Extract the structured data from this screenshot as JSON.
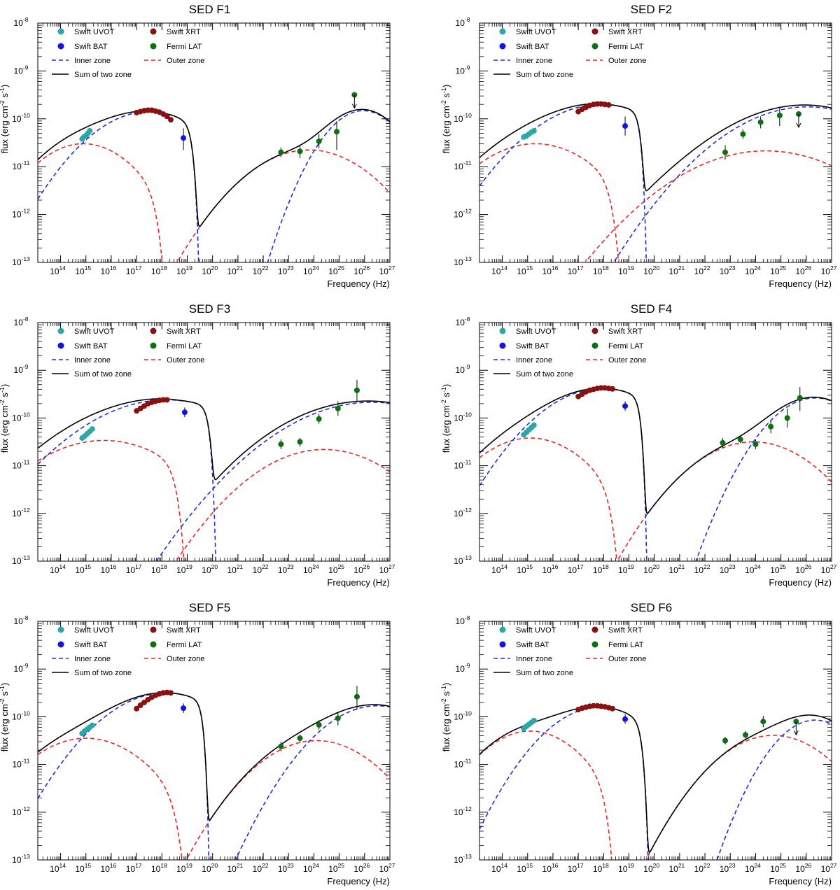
{
  "figure": {
    "background": "#ffffff"
  },
  "common": {
    "xlabel": "Frequency (Hz)",
    "ylabel_prefix": "flux (erg cm",
    "ylabel_exp1": "-2",
    "ylabel_mid": " s",
    "ylabel_exp2": "-1",
    "ylabel_suffix": ")",
    "x_tick_exponents": [
      14,
      15,
      16,
      17,
      18,
      19,
      20,
      21,
      22,
      23,
      24,
      25,
      26,
      27
    ],
    "y_tick_exponents": [
      -13,
      -12,
      -11,
      -10,
      -9,
      -8
    ],
    "xlim_log10": [
      13.1,
      27
    ],
    "ylim_log10": [
      -13,
      -8
    ],
    "tick_base": "10",
    "legend": [
      {
        "label": "Swift UVOT",
        "kind": "marker",
        "color": "#2ca7a7"
      },
      {
        "label": "Swift XRT",
        "kind": "marker",
        "color": "#8b1010"
      },
      {
        "label": "Swift BAT",
        "kind": "marker",
        "color": "#1414e0"
      },
      {
        "label": "Fermi LAT",
        "kind": "marker",
        "color": "#0f6e12"
      },
      {
        "label": "Inner zone",
        "kind": "dash",
        "color": "#1a2ee0"
      },
      {
        "label": "Outer zone",
        "kind": "dash",
        "color": "#ee2222"
      },
      {
        "label": "Sum of two zone",
        "kind": "line",
        "color": "#000000"
      }
    ],
    "colors": {
      "inner": "#1a2ee0",
      "outer": "#ee2222",
      "sum": "#000000",
      "uvot": "#2ca7a7",
      "xrt": "#8b1010",
      "bat": "#1414e0",
      "lat": "#0f6e12"
    }
  },
  "chart_data": [
    {
      "type": "scatter",
      "title": "SED F1",
      "xlabel": "Frequency (Hz)",
      "ylabel": "flux (erg cm-2 s-1)",
      "x_log10": true,
      "y_log10": true,
      "uvot": [
        [
          14.85,
          -10.42
        ],
        [
          14.92,
          -10.38
        ],
        [
          15.0,
          -10.35
        ],
        [
          15.08,
          -10.3
        ],
        [
          15.15,
          -10.25
        ]
      ],
      "xrt": [
        [
          17.0,
          -9.87
        ],
        [
          17.15,
          -9.85
        ],
        [
          17.3,
          -9.83
        ],
        [
          17.45,
          -9.82
        ],
        [
          17.6,
          -9.82
        ],
        [
          17.75,
          -9.84
        ],
        [
          17.9,
          -9.86
        ],
        [
          18.05,
          -9.9
        ],
        [
          18.2,
          -9.95
        ],
        [
          18.35,
          -10.02
        ]
      ],
      "bat": [
        [
          18.85,
          -10.4,
          -10.2,
          -10.65
        ]
      ],
      "lat": [
        [
          22.7,
          -10.7,
          -10.6,
          -10.8
        ],
        [
          23.45,
          -10.68,
          -10.55,
          -10.82
        ],
        [
          24.2,
          -10.47,
          -10.32,
          -10.62
        ],
        [
          24.9,
          -10.27,
          -10.05,
          -10.65
        ]
      ],
      "upper_limits": [
        [
          25.6,
          -9.5
        ]
      ],
      "inner": {
        "sync": {
          "peak": [
            17.5,
            -9.85
          ],
          "w": 2.3,
          "cut": 19.7
        },
        "ic": {
          "peak": [
            25.95,
            -9.83
          ],
          "w": 1.5,
          "cut": 29.5
        }
      },
      "outer": {
        "sync": {
          "peak": [
            14.9,
            -10.52
          ],
          "w": 2.0,
          "cut": 18.65
        },
        "ic": {
          "peak": [
            23.8,
            -10.65
          ],
          "w": 2.4,
          "cut": 29.5
        }
      }
    },
    {
      "type": "scatter",
      "title": "SED F2",
      "xlabel": "Frequency (Hz)",
      "ylabel": "flux (erg cm-2 s-1)",
      "x_log10": true,
      "y_log10": true,
      "uvot": [
        [
          14.85,
          -10.38
        ],
        [
          14.95,
          -10.36
        ],
        [
          15.05,
          -10.32
        ],
        [
          15.15,
          -10.28
        ],
        [
          15.25,
          -10.25
        ]
      ],
      "xrt": [
        [
          17.0,
          -9.85
        ],
        [
          17.15,
          -9.8
        ],
        [
          17.3,
          -9.76
        ],
        [
          17.45,
          -9.72
        ],
        [
          17.6,
          -9.7
        ],
        [
          17.75,
          -9.69
        ],
        [
          17.9,
          -9.69
        ],
        [
          18.05,
          -9.7
        ],
        [
          18.2,
          -9.71
        ]
      ],
      "bat": [
        [
          18.85,
          -10.15,
          -9.95,
          -10.35
        ]
      ],
      "lat": [
        [
          22.8,
          -10.7,
          -10.55,
          -10.85
        ],
        [
          23.5,
          -10.32,
          -10.22,
          -10.42
        ],
        [
          24.2,
          -10.07,
          -9.95,
          -10.2
        ],
        [
          24.95,
          -9.93,
          -9.75,
          -10.15
        ]
      ],
      "upper_limits": [
        [
          25.7,
          -9.9
        ]
      ],
      "inner": {
        "sync": {
          "peak": [
            17.9,
            -9.7
          ],
          "w": 2.6,
          "cut": 19.9
        },
        "ic": {
          "peak": [
            26.05,
            -9.75
          ],
          "w": 3.0,
          "cut": 29.5
        }
      },
      "outer": {
        "sync": {
          "peak": [
            15.3,
            -10.52
          ],
          "w": 2.4,
          "cut": 19.2
        },
        "ic": {
          "peak": [
            24.4,
            -10.67
          ],
          "w": 3.3,
          "cut": 29.5
        }
      }
    },
    {
      "type": "scatter",
      "title": "SED F3",
      "xlabel": "Frequency (Hz)",
      "ylabel": "flux (erg cm-2 s-1)",
      "x_log10": true,
      "y_log10": true,
      "uvot": [
        [
          14.85,
          -10.42
        ],
        [
          14.95,
          -10.38
        ],
        [
          15.05,
          -10.33
        ],
        [
          15.15,
          -10.28
        ],
        [
          15.25,
          -10.23
        ]
      ],
      "xrt": [
        [
          17.0,
          -9.85
        ],
        [
          17.15,
          -9.8
        ],
        [
          17.3,
          -9.75
        ],
        [
          17.45,
          -9.7
        ],
        [
          17.6,
          -9.67
        ],
        [
          17.75,
          -9.65
        ],
        [
          17.9,
          -9.63
        ],
        [
          18.05,
          -9.62
        ],
        [
          18.2,
          -9.62
        ]
      ],
      "bat": [
        [
          18.9,
          -9.88,
          -9.78,
          -9.98
        ]
      ],
      "lat": [
        [
          22.7,
          -10.55,
          -10.45,
          -10.65
        ],
        [
          23.45,
          -10.5,
          -10.42,
          -10.6
        ],
        [
          24.2,
          -10.02,
          -9.92,
          -10.12
        ],
        [
          24.95,
          -9.8,
          -9.65,
          -9.95
        ],
        [
          25.7,
          -9.42,
          -9.2,
          -9.65
        ]
      ],
      "upper_limits": [],
      "inner": {
        "sync": {
          "peak": [
            18.2,
            -9.62
          ],
          "w": 3.1,
          "cut": 20.35
        },
        "ic": {
          "peak": [
            26.3,
            -9.67
          ],
          "w": 3.3,
          "cut": 29.5
        }
      },
      "outer": {
        "sync": {
          "peak": [
            15.7,
            -10.47
          ],
          "w": 2.8,
          "cut": 19.4
        },
        "ic": {
          "peak": [
            24.4,
            -10.66
          ],
          "w": 2.7,
          "cut": 29.5
        }
      }
    },
    {
      "type": "scatter",
      "title": "SED F4",
      "xlabel": "Frequency (Hz)",
      "ylabel": "flux (erg cm-2 s-1)",
      "x_log10": true,
      "y_log10": true,
      "uvot": [
        [
          14.85,
          -10.35
        ],
        [
          14.95,
          -10.3
        ],
        [
          15.05,
          -10.25
        ],
        [
          15.15,
          -10.2
        ],
        [
          15.25,
          -10.15
        ]
      ],
      "xrt": [
        [
          17.0,
          -9.55
        ],
        [
          17.15,
          -9.5
        ],
        [
          17.3,
          -9.45
        ],
        [
          17.45,
          -9.42
        ],
        [
          17.6,
          -9.4
        ],
        [
          17.75,
          -9.38
        ],
        [
          17.9,
          -9.37
        ],
        [
          18.05,
          -9.37
        ],
        [
          18.2,
          -9.38
        ],
        [
          18.35,
          -9.39
        ]
      ],
      "bat": [
        [
          18.85,
          -9.75,
          -9.65,
          -9.85
        ]
      ],
      "lat": [
        [
          22.7,
          -10.52,
          -10.42,
          -10.62
        ],
        [
          23.4,
          -10.45,
          -10.37,
          -10.53
        ],
        [
          24.0,
          -10.55,
          -10.45,
          -10.65
        ],
        [
          24.6,
          -10.18,
          -10.05,
          -10.32
        ],
        [
          25.25,
          -10.0,
          -9.8,
          -10.2
        ],
        [
          25.75,
          -9.58,
          -9.35,
          -9.85
        ]
      ],
      "upper_limits": [],
      "inner": {
        "sync": {
          "peak": [
            17.95,
            -9.38
          ],
          "w": 2.4,
          "cut": 19.9
        },
        "ic": {
          "peak": [
            26.35,
            -9.58
          ],
          "w": 1.8,
          "cut": 29.5
        }
      },
      "outer": {
        "sync": {
          "peak": [
            15.1,
            -10.42
          ],
          "w": 2.2,
          "cut": 19.2
        },
        "ic": {
          "peak": [
            23.9,
            -10.5
          ],
          "w": 2.4,
          "cut": 29.5
        }
      }
    },
    {
      "type": "scatter",
      "title": "SED F5",
      "xlabel": "Frequency (Hz)",
      "ylabel": "flux (erg cm-2 s-1)",
      "x_log10": true,
      "y_log10": true,
      "uvot": [
        [
          14.85,
          -10.35
        ],
        [
          14.95,
          -10.3
        ],
        [
          15.05,
          -10.26
        ],
        [
          15.15,
          -10.22
        ],
        [
          15.25,
          -10.18
        ]
      ],
      "xrt": [
        [
          17.0,
          -9.83
        ],
        [
          17.15,
          -9.76
        ],
        [
          17.3,
          -9.7
        ],
        [
          17.45,
          -9.64
        ],
        [
          17.6,
          -9.59
        ],
        [
          17.75,
          -9.55
        ],
        [
          17.9,
          -9.52
        ],
        [
          18.05,
          -9.5
        ],
        [
          18.2,
          -9.49
        ],
        [
          18.35,
          -9.5
        ]
      ],
      "bat": [
        [
          18.85,
          -9.82,
          -9.72,
          -9.92
        ]
      ],
      "lat": [
        [
          22.7,
          -10.62,
          -10.52,
          -10.72
        ],
        [
          23.45,
          -10.45,
          -10.37,
          -10.53
        ],
        [
          24.2,
          -10.17,
          -10.07,
          -10.27
        ],
        [
          24.95,
          -10.03,
          -9.9,
          -10.18
        ],
        [
          25.7,
          -9.58,
          -9.35,
          -9.85
        ]
      ],
      "upper_limits": [],
      "inner": {
        "sync": {
          "peak": [
            18.15,
            -9.5
          ],
          "w": 2.4,
          "cut": 20.05
        },
        "ic": {
          "peak": [
            26.5,
            -9.77
          ],
          "w": 2.2,
          "cut": 29.5
        }
      },
      "outer": {
        "sync": {
          "peak": [
            15.0,
            -10.45
          ],
          "w": 2.3,
          "cut": 19.6
        },
        "ic": {
          "peak": [
            24.1,
            -10.5
          ],
          "w": 2.3,
          "cut": 29.5
        }
      }
    },
    {
      "type": "scatter",
      "title": "SED F6",
      "xlabel": "Frequency (Hz)",
      "ylabel": "flux (erg cm-2 s-1)",
      "x_log10": true,
      "y_log10": true,
      "uvot": [
        [
          14.85,
          -10.25
        ],
        [
          14.95,
          -10.2
        ],
        [
          15.05,
          -10.16
        ],
        [
          15.15,
          -10.12
        ],
        [
          15.25,
          -10.08
        ]
      ],
      "xrt": [
        [
          17.0,
          -9.85
        ],
        [
          17.15,
          -9.82
        ],
        [
          17.3,
          -9.8
        ],
        [
          17.45,
          -9.78
        ],
        [
          17.6,
          -9.77
        ],
        [
          17.75,
          -9.77
        ],
        [
          17.9,
          -9.78
        ],
        [
          18.05,
          -9.79
        ],
        [
          18.2,
          -9.81
        ],
        [
          18.35,
          -9.83
        ]
      ],
      "bat": [
        [
          18.85,
          -10.05,
          -9.95,
          -10.15
        ]
      ],
      "lat": [
        [
          22.8,
          -10.5,
          -10.42,
          -10.58
        ],
        [
          23.6,
          -10.38,
          -10.3,
          -10.46
        ],
        [
          24.3,
          -10.1,
          -9.98,
          -10.22
        ]
      ],
      "upper_limits": [
        [
          25.6,
          -10.1
        ]
      ],
      "inner": {
        "sync": {
          "peak": [
            17.85,
            -9.8
          ],
          "w": 2.1,
          "cut": 20.0
        },
        "ic": {
          "peak": [
            26.35,
            -10.07
          ],
          "w": 1.6,
          "cut": 29.5
        }
      },
      "outer": {
        "sync": {
          "peak": [
            15.1,
            -10.3
          ],
          "w": 2.0,
          "cut": 18.95
        },
        "ic": {
          "peak": [
            24.7,
            -10.39
          ],
          "w": 2.2,
          "cut": 29.5
        }
      }
    }
  ]
}
